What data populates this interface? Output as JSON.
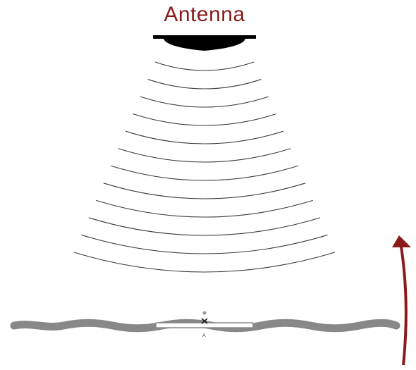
{
  "antenna": {
    "label": "Antenna",
    "label_color": "#8b1a1a",
    "body_color": "#000000"
  },
  "waves": {
    "count": 12,
    "color": "#3a3a3a"
  },
  "tag": {
    "chip_marker": "A",
    "surface_color": "#888888"
  },
  "arrow": {
    "color": "#8b1a1a",
    "direction": "up"
  }
}
